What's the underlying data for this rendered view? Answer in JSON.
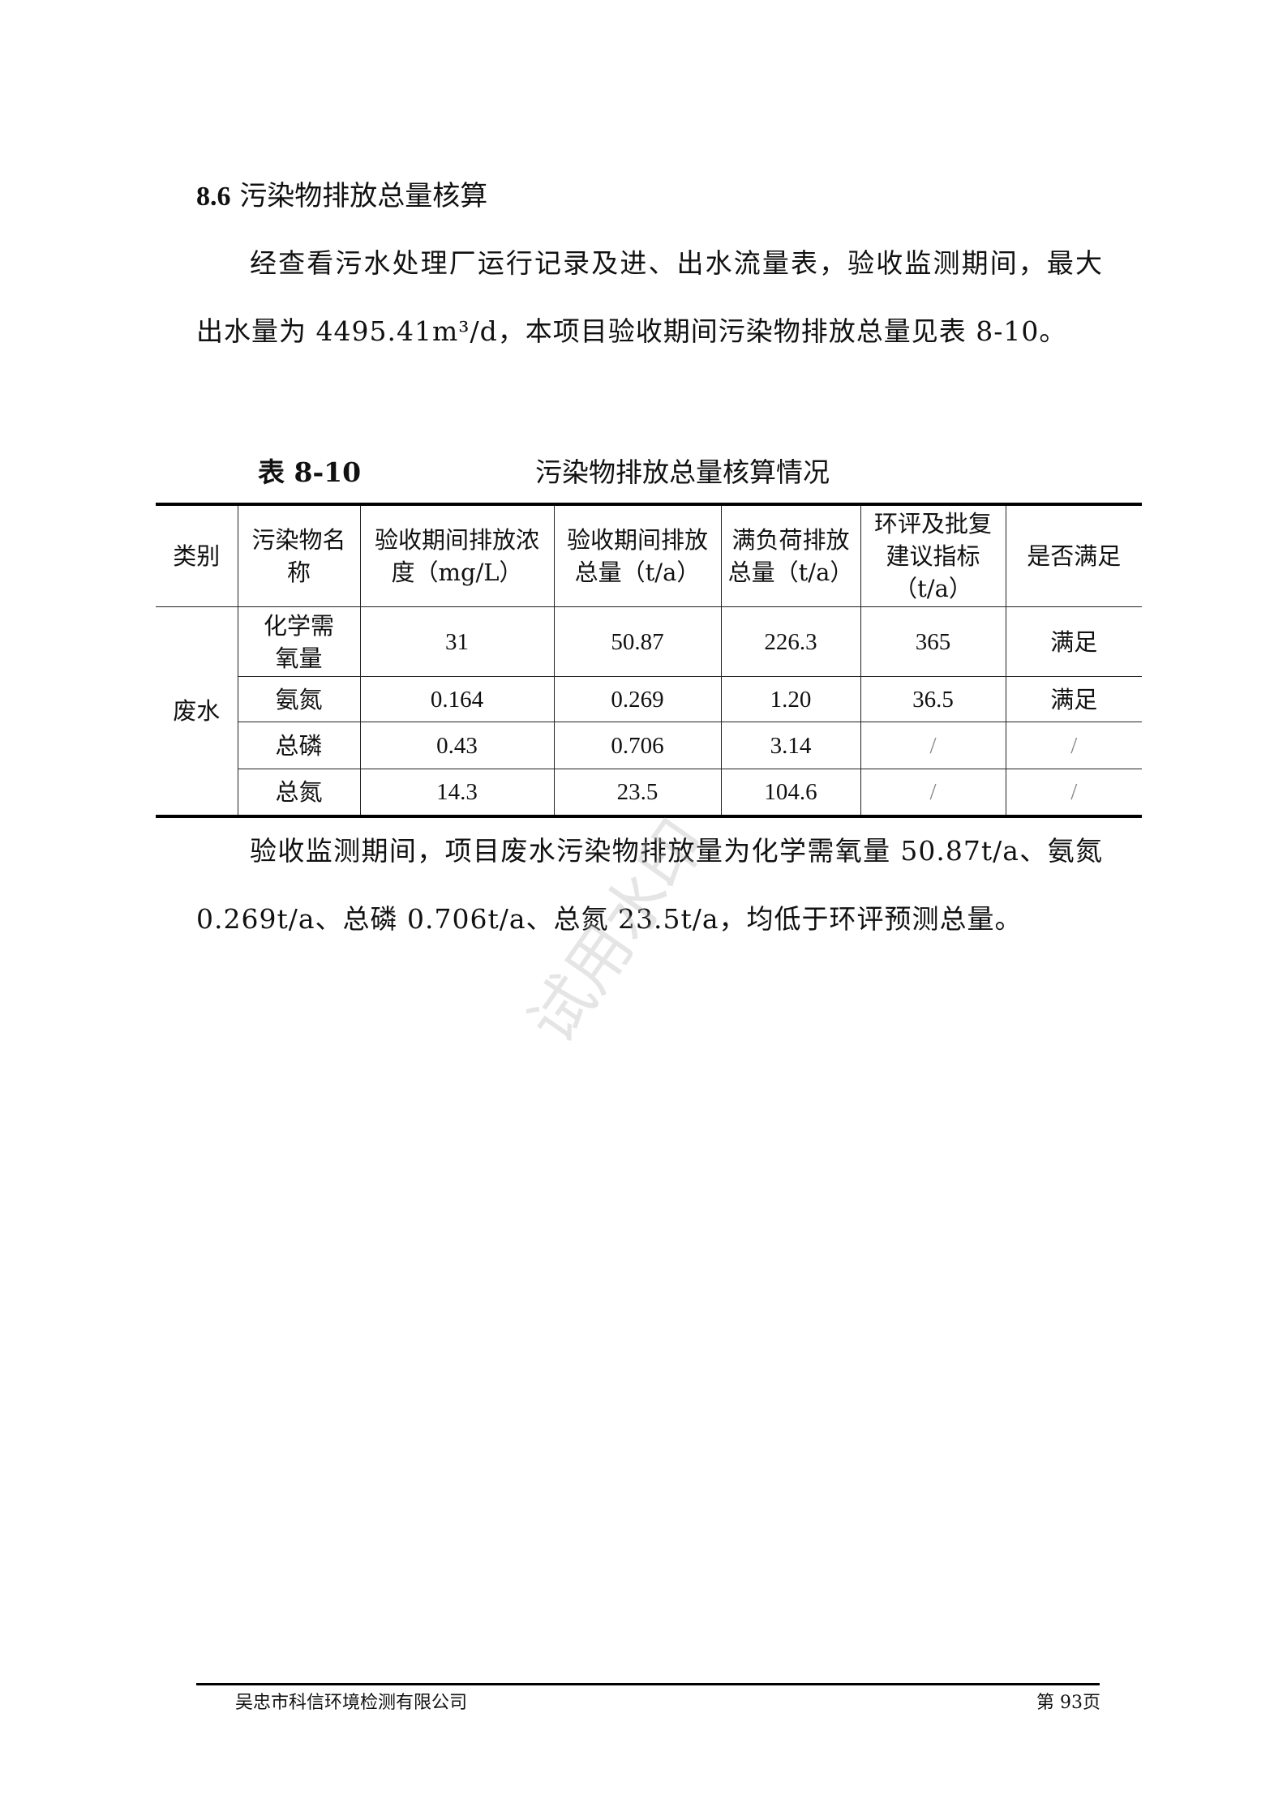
{
  "section": {
    "number": "8.6",
    "title": "污染物排放总量核算"
  },
  "intro": "经查看污水处理厂运行记录及进、出水流量表，验收监测期间，最大出水量为 4495.41m³/d，本项目验收期间污染物排放总量见表 8-10。",
  "table": {
    "label": "表 8-10",
    "title": "污染物排放总量核算情况",
    "headers": [
      "类别",
      "污染物名称",
      "验收期间排放浓度（mg/L）",
      "验收期间排放总量（t/a）",
      "满负荷排放总量（t/a）",
      "环评及批复建议指标（t/a）",
      "是否满足"
    ],
    "category": "废水",
    "rows": [
      {
        "pollutant": "化学需氧量",
        "conc": "31",
        "total": "50.87",
        "full_load": "226.3",
        "limit": "365",
        "ok": "满足"
      },
      {
        "pollutant": "氨氮",
        "conc": "0.164",
        "total": "0.269",
        "full_load": "1.20",
        "limit": "36.5",
        "ok": "满足"
      },
      {
        "pollutant": "总磷",
        "conc": "0.43",
        "total": "0.706",
        "full_load": "3.14",
        "limit": "/",
        "ok": "/"
      },
      {
        "pollutant": "总氮",
        "conc": "14.3",
        "total": "23.5",
        "full_load": "104.6",
        "limit": "/",
        "ok": "/"
      }
    ]
  },
  "conclusion": "验收监测期间，项目废水污染物排放量为化学需氧量 50.87t/a、氨氮 0.269t/a、总磷 0.706t/a、总氮 23.5t/a，均低于环评预测总量。",
  "watermark": "试用水印",
  "footer": {
    "company": "吴忠市科信环境检测有限公司",
    "page": "第 93页"
  }
}
